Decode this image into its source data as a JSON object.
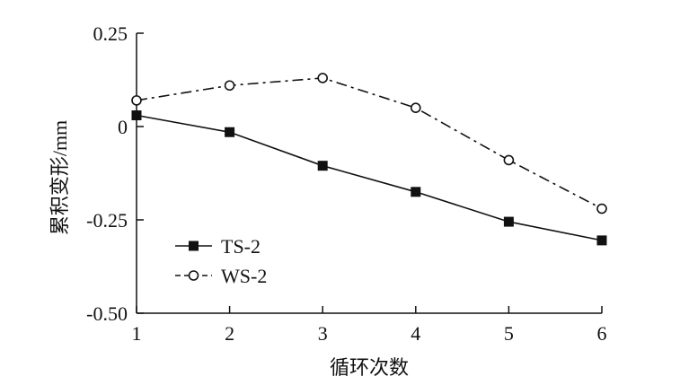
{
  "chart_data": {
    "type": "line",
    "x": [
      1,
      2,
      3,
      4,
      5,
      6
    ],
    "xticks": [
      "1",
      "2",
      "3",
      "4",
      "5",
      "6"
    ],
    "xlim": [
      1,
      6
    ],
    "ylim": [
      -0.5,
      0.25
    ],
    "yticks": [
      {
        "value": 0.25,
        "label": "0.25"
      },
      {
        "value": 0,
        "label": "0"
      },
      {
        "value": -0.25,
        "label": "-0.25"
      },
      {
        "value": -0.5,
        "label": "-0.50"
      }
    ],
    "xlabel": "循环次数",
    "ylabel": "累积变形/mm",
    "grid": false,
    "legend_position": "bottom-left",
    "series": [
      {
        "name": "TS-2",
        "marker": "filled-square",
        "line_style": "solid",
        "color": "#111111",
        "values": [
          0.03,
          -0.015,
          -0.105,
          -0.175,
          -0.255,
          -0.305
        ]
      },
      {
        "name": "WS-2",
        "marker": "open-circle",
        "line_style": "dash-dot",
        "color": "#111111",
        "values": [
          0.07,
          0.11,
          0.13,
          0.05,
          -0.09,
          -0.22
        ]
      }
    ]
  }
}
